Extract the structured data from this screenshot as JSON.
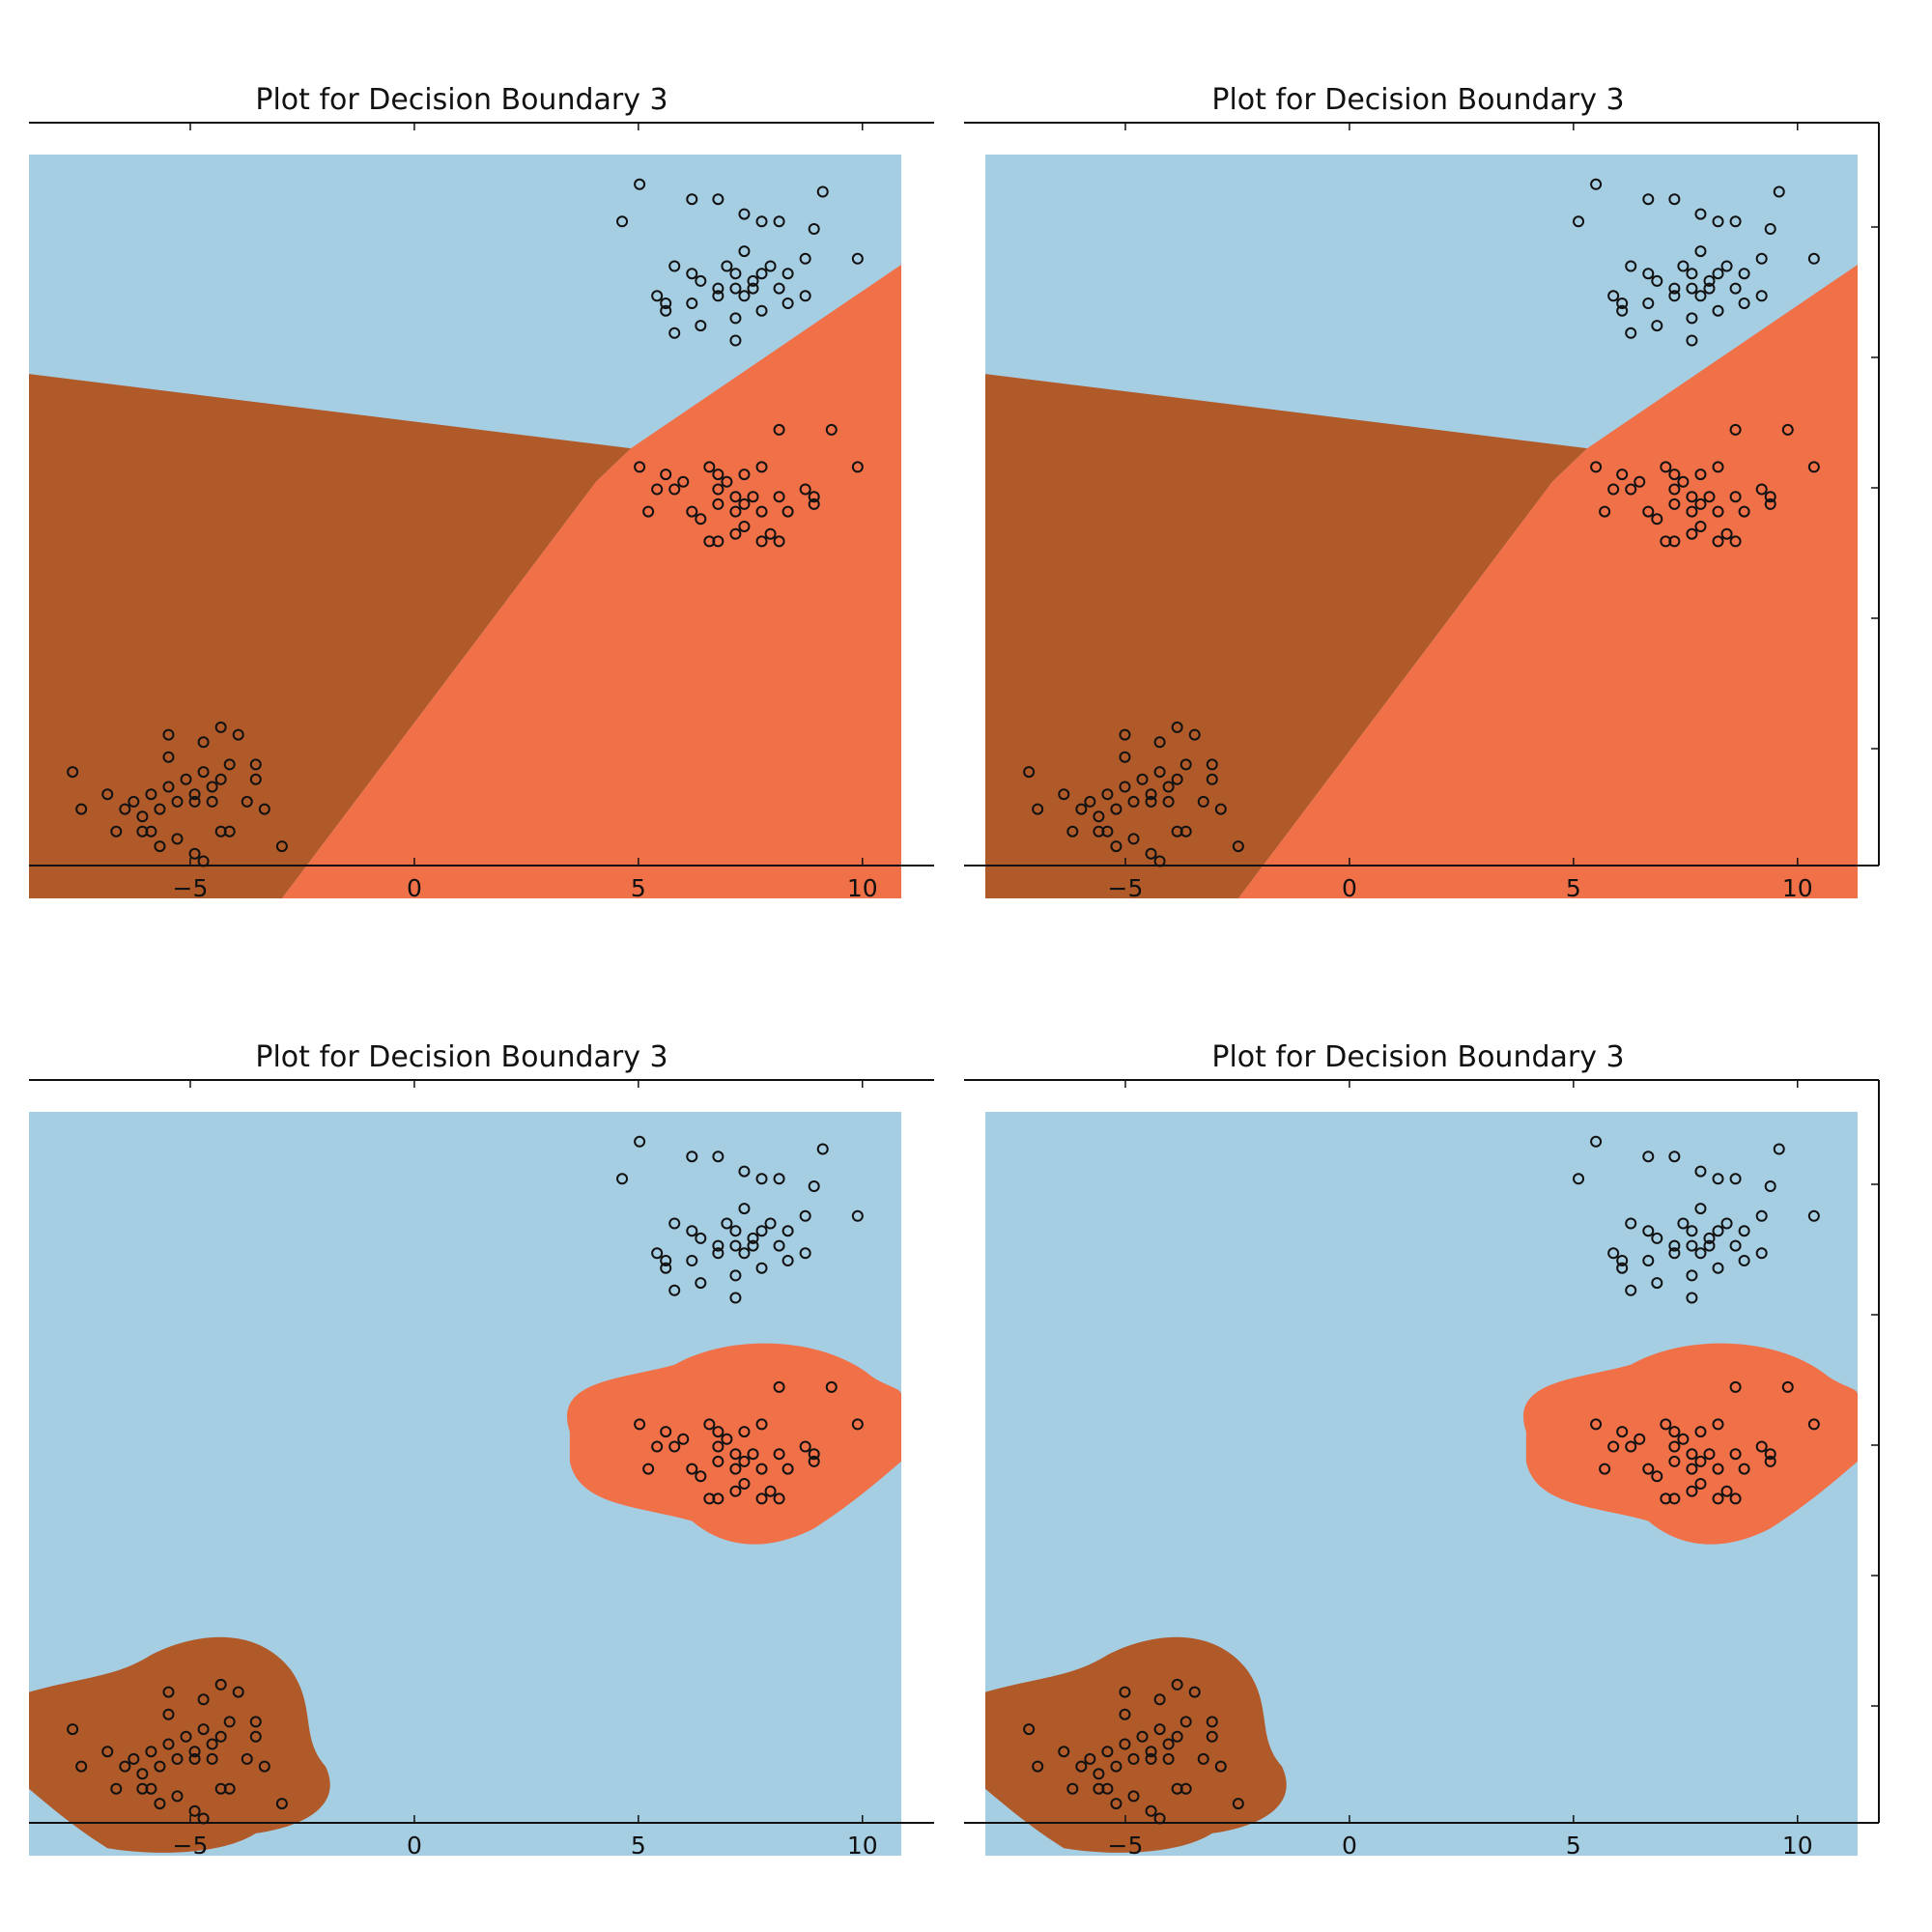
{
  "figure": {
    "colors": {
      "class_a": "#a6cee3",
      "class_b": "#f07048",
      "class_c": "#b05a2a",
      "points": "#111111"
    }
  },
  "chart_data": [
    {
      "type": "scatter",
      "title": "Plot for Decision Boundary 3",
      "decision_regions": "linear",
      "xlim": [
        -8.6,
        11.6
      ],
      "xticks": [
        -5,
        0,
        5,
        10
      ],
      "xtick_labels": [
        "−5",
        "0",
        "5",
        "10"
      ],
      "ytick_labels_shown": false
    },
    {
      "type": "scatter",
      "title": "Plot for Decision Boundary 3",
      "decision_regions": "linear",
      "xlim": [
        -8.6,
        11.6
      ],
      "xticks": [
        -5,
        0,
        5,
        10
      ],
      "xtick_labels": [
        "−5",
        "0",
        "5",
        "10"
      ],
      "ytick_labels_shown": false
    },
    {
      "type": "scatter",
      "title": "Plot for Decision Boundary 3",
      "decision_regions": "rbf",
      "xlim": [
        -8.6,
        11.6
      ],
      "xticks": [
        -5,
        0,
        5,
        10
      ],
      "xtick_labels": [
        "−5",
        "0",
        "5",
        "10"
      ],
      "ytick_labels_shown": false
    },
    {
      "type": "scatter",
      "title": "Plot for Decision Boundary 3",
      "decision_regions": "rbf",
      "xlim": [
        -8.6,
        11.6
      ],
      "xticks": [
        -5,
        0,
        5,
        10
      ],
      "xtick_labels": [
        "−5",
        "0",
        "5",
        "10"
      ],
      "ytick_labels_shown": false
    }
  ]
}
